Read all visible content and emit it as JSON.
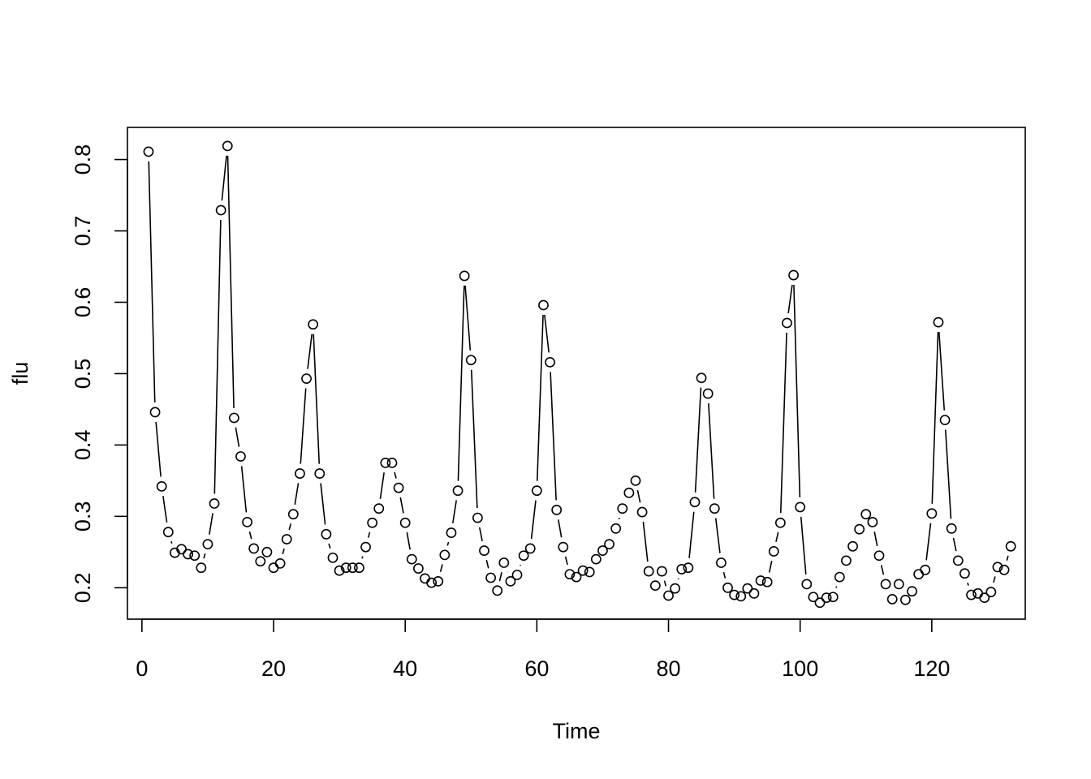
{
  "chart_data": {
    "type": "line",
    "plot_style": "points-connected-with-gaps",
    "title": "",
    "xlabel": "Time",
    "ylabel": "flu",
    "xlim": [
      -2.2,
      134.2
    ],
    "ylim": [
      0.156,
      0.845
    ],
    "x_ticks": [
      0,
      20,
      40,
      60,
      80,
      100,
      120
    ],
    "x_tick_labels": [
      "0",
      "20",
      "40",
      "60",
      "80",
      "100",
      "120"
    ],
    "y_ticks": [
      0.2,
      0.3,
      0.4,
      0.5,
      0.6,
      0.7,
      0.8
    ],
    "y_tick_labels": [
      "0.2",
      "0.3",
      "0.4",
      "0.5",
      "0.6",
      "0.7",
      "0.8"
    ],
    "grid": false,
    "legend": "none",
    "colors": {
      "line": "#000000",
      "point_stroke": "#000000",
      "background": "#ffffff"
    },
    "series": [
      {
        "x": [
          1,
          2,
          3,
          4,
          5,
          6,
          7,
          8,
          9,
          10,
          11,
          12,
          13,
          14,
          15,
          16,
          17,
          18,
          19,
          20,
          21,
          22,
          23,
          24,
          25,
          26,
          27,
          28,
          29,
          30,
          31,
          32,
          33,
          34,
          35,
          36,
          37,
          38,
          39,
          40,
          41,
          42,
          43,
          44,
          45,
          46,
          47,
          48,
          49,
          50,
          51,
          52,
          53,
          54,
          55,
          56,
          57,
          58,
          59,
          60,
          61,
          62,
          63,
          64,
          65,
          66,
          67,
          68,
          69,
          70,
          71,
          72,
          73,
          74,
          75,
          76,
          77,
          78,
          79,
          80,
          81,
          82,
          83,
          84,
          85,
          86,
          87,
          88,
          89,
          90,
          91,
          92,
          93,
          94,
          95,
          96,
          97,
          98,
          99,
          100,
          101,
          102,
          103,
          104,
          105,
          106,
          107,
          108,
          109,
          110,
          111,
          112,
          113,
          114,
          115,
          116,
          117,
          118,
          119,
          120,
          121,
          122,
          123,
          124,
          125,
          126,
          127,
          128,
          129,
          130,
          131,
          132
        ],
        "values": [
          0.811,
          0.446,
          0.342,
          0.278,
          0.249,
          0.254,
          0.247,
          0.245,
          0.228,
          0.261,
          0.318,
          0.729,
          0.819,
          0.438,
          0.384,
          0.292,
          0.255,
          0.237,
          0.25,
          0.228,
          0.234,
          0.268,
          0.303,
          0.36,
          0.493,
          0.569,
          0.36,
          0.275,
          0.242,
          0.224,
          0.228,
          0.228,
          0.228,
          0.257,
          0.291,
          0.311,
          0.375,
          0.375,
          0.34,
          0.291,
          0.24,
          0.227,
          0.213,
          0.207,
          0.209,
          0.246,
          0.277,
          0.336,
          0.637,
          0.519,
          0.298,
          0.252,
          0.214,
          0.196,
          0.235,
          0.209,
          0.218,
          0.245,
          0.255,
          0.336,
          0.596,
          0.516,
          0.309,
          0.257,
          0.219,
          0.215,
          0.224,
          0.222,
          0.24,
          0.252,
          0.261,
          0.283,
          0.311,
          0.333,
          0.35,
          0.306,
          0.223,
          0.203,
          0.223,
          0.189,
          0.199,
          0.226,
          0.228,
          0.32,
          0.494,
          0.472,
          0.311,
          0.235,
          0.2,
          0.19,
          0.188,
          0.199,
          0.192,
          0.21,
          0.208,
          0.251,
          0.291,
          0.571,
          0.638,
          0.313,
          0.205,
          0.187,
          0.179,
          0.186,
          0.187,
          0.215,
          0.238,
          0.258,
          0.282,
          0.303,
          0.292,
          0.245,
          0.205,
          0.184,
          0.205,
          0.183,
          0.195,
          0.219,
          0.225,
          0.304,
          0.572,
          0.435,
          0.283,
          0.238,
          0.22,
          0.19,
          0.192,
          0.186,
          0.194,
          0.229,
          0.225,
          0.258
        ]
      }
    ]
  }
}
